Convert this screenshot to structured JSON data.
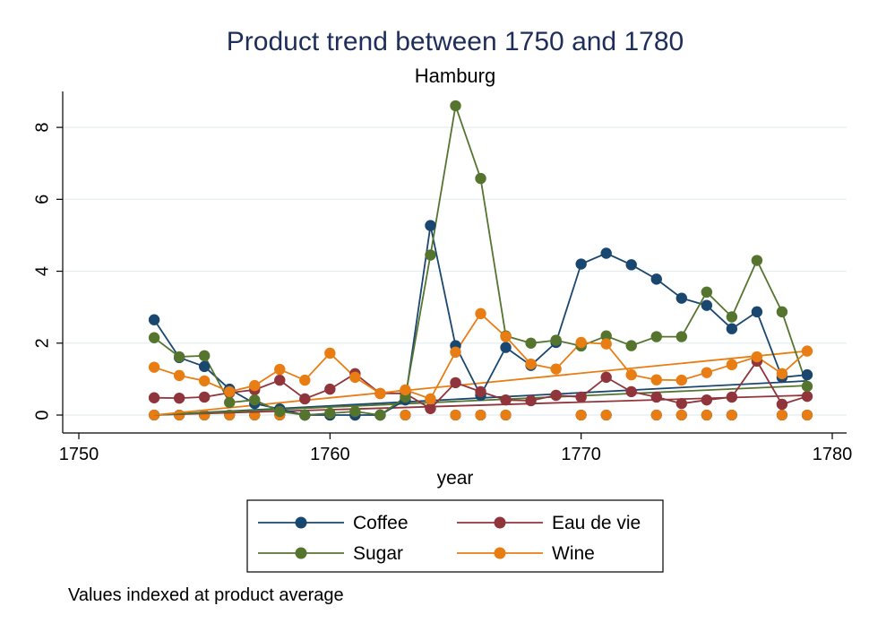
{
  "chart_data": {
    "type": "line",
    "title": "Product trend between 1750 and 1780",
    "subtitle": "Hamburg",
    "xlabel": "year",
    "ylabel": "",
    "note": "Values indexed at product average",
    "xlim": [
      1750,
      1780
    ],
    "ylim": [
      0,
      9
    ],
    "xticks": [
      1750,
      1760,
      1770,
      1780
    ],
    "yticks": [
      0,
      2,
      4,
      6,
      8
    ],
    "grid": true,
    "legend_position": "bottom",
    "series": [
      {
        "name": "Coffee",
        "color": "#1a476f",
        "points": [
          [
            1753,
            2.65
          ],
          [
            1754,
            1.6
          ],
          [
            1755,
            1.35
          ],
          [
            1756,
            0.72
          ],
          [
            1757,
            0.32
          ],
          [
            1758,
            0.17
          ],
          [
            1759,
            0.0
          ],
          [
            1760,
            0.0
          ],
          [
            1761,
            0.0
          ],
          [
            1762,
            0.0
          ],
          [
            1763,
            0.42
          ],
          [
            1764,
            5.27
          ],
          [
            1765,
            1.93
          ],
          [
            1766,
            0.55
          ],
          [
            1767,
            1.88
          ],
          [
            1768,
            1.38
          ],
          [
            1769,
            2.02
          ],
          [
            1770,
            4.2
          ],
          [
            1771,
            4.5
          ],
          [
            1772,
            4.18
          ],
          [
            1773,
            3.78
          ],
          [
            1774,
            3.25
          ],
          [
            1775,
            3.05
          ],
          [
            1776,
            2.4
          ],
          [
            1777,
            2.87
          ],
          [
            1778,
            1.05
          ],
          [
            1779,
            1.12
          ]
        ],
        "trend": [
          [
            1753,
            0.0
          ],
          [
            1779,
            0.95
          ]
        ]
      },
      {
        "name": "Eau de vie",
        "color": "#90353b",
        "points": [
          [
            1753,
            0.48
          ],
          [
            1754,
            0.47
          ],
          [
            1755,
            0.5
          ],
          [
            1756,
            0.62
          ],
          [
            1757,
            0.7
          ],
          [
            1758,
            0.97
          ],
          [
            1759,
            0.45
          ],
          [
            1760,
            0.72
          ],
          [
            1761,
            1.15
          ],
          [
            1762,
            0.6
          ],
          [
            1763,
            0.6
          ],
          [
            1764,
            0.18
          ],
          [
            1765,
            0.9
          ],
          [
            1766,
            0.65
          ],
          [
            1767,
            0.42
          ],
          [
            1768,
            0.4
          ],
          [
            1769,
            0.55
          ],
          [
            1770,
            0.5
          ],
          [
            1771,
            1.05
          ],
          [
            1772,
            0.65
          ],
          [
            1773,
            0.5
          ],
          [
            1774,
            0.32
          ],
          [
            1775,
            0.42
          ],
          [
            1776,
            0.5
          ],
          [
            1777,
            1.5
          ],
          [
            1778,
            0.3
          ],
          [
            1779,
            0.52
          ]
        ],
        "trend": [
          [
            1753,
            0.0
          ],
          [
            1779,
            0.55
          ]
        ]
      },
      {
        "name": "Sugar",
        "color": "#55752f",
        "points": [
          [
            1753,
            2.15
          ],
          [
            1754,
            1.62
          ],
          [
            1755,
            1.65
          ],
          [
            1756,
            0.35
          ],
          [
            1757,
            0.42
          ],
          [
            1758,
            0.1
          ],
          [
            1759,
            0.0
          ],
          [
            1760,
            0.05
          ],
          [
            1761,
            0.1
          ],
          [
            1762,
            0.0
          ],
          [
            1763,
            0.5
          ],
          [
            1764,
            4.45
          ],
          [
            1765,
            8.6
          ],
          [
            1766,
            6.58
          ],
          [
            1767,
            2.2
          ],
          [
            1768,
            2.0
          ],
          [
            1769,
            2.08
          ],
          [
            1770,
            1.92
          ],
          [
            1771,
            2.2
          ],
          [
            1772,
            1.93
          ],
          [
            1773,
            2.18
          ],
          [
            1774,
            2.18
          ],
          [
            1775,
            3.42
          ],
          [
            1776,
            2.73
          ],
          [
            1777,
            4.3
          ],
          [
            1778,
            2.87
          ],
          [
            1779,
            0.8
          ]
        ],
        "trend": [
          [
            1753,
            0.0
          ],
          [
            1779,
            0.82
          ]
        ]
      },
      {
        "name": "Wine",
        "color": "#e87d13",
        "points": [
          [
            1753,
            1.33
          ],
          [
            1754,
            1.1
          ],
          [
            1755,
            0.95
          ],
          [
            1756,
            0.65
          ],
          [
            1757,
            0.82
          ],
          [
            1758,
            1.27
          ],
          [
            1759,
            0.97
          ],
          [
            1760,
            1.72
          ],
          [
            1761,
            1.05
          ],
          [
            1762,
            0.6
          ],
          [
            1763,
            0.7
          ],
          [
            1764,
            0.45
          ],
          [
            1765,
            1.75
          ],
          [
            1766,
            2.82
          ],
          [
            1767,
            2.18
          ],
          [
            1768,
            1.42
          ],
          [
            1769,
            1.28
          ],
          [
            1770,
            2.02
          ],
          [
            1771,
            1.98
          ],
          [
            1772,
            1.12
          ],
          [
            1773,
            0.98
          ],
          [
            1774,
            0.97
          ],
          [
            1775,
            1.18
          ],
          [
            1776,
            1.4
          ],
          [
            1777,
            1.62
          ],
          [
            1778,
            1.15
          ],
          [
            1779,
            1.78
          ]
        ],
        "trend": [
          [
            1753,
            0.0
          ],
          [
            1779,
            1.78
          ]
        ]
      }
    ],
    "zero_markers": [
      1753,
      1754,
      1755,
      1756,
      1757,
      1758,
      1759,
      1760,
      1761,
      1762,
      1763,
      1765,
      1766,
      1767,
      1770,
      1771,
      1773,
      1774,
      1775,
      1776,
      1778,
      1779
    ]
  }
}
